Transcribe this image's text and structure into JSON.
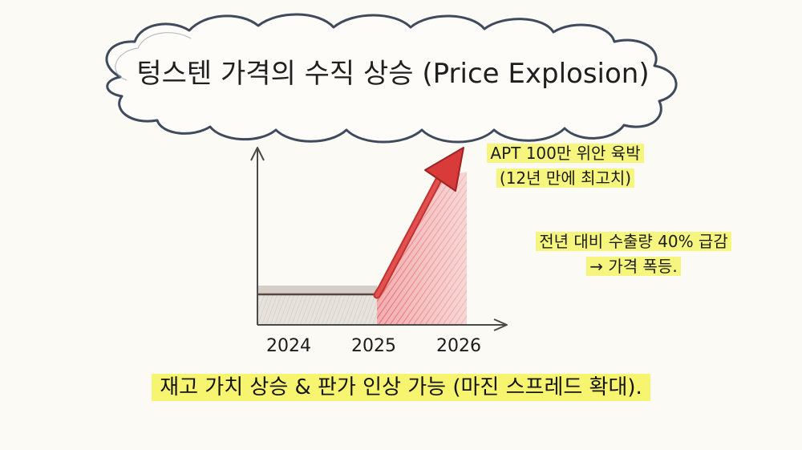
{
  "title": "텅스텐 가격의 수직 상승 (Price Explosion)",
  "annotations": {
    "peak_line1": "APT 100만 위안 육박",
    "peak_line2": "(12년 만에 최고치)",
    "export_line1": "전년 대비 수출량 40% 급감",
    "export_line2": "→ 가격 폭등."
  },
  "footer": "재고 가치 상승 & 판가 인상 가능 (마진 스프레드 확대).",
  "colors": {
    "cloud_stroke": "#3f4a5c",
    "flat_band": "#d8d3cc",
    "rise_fill": "#e8545a",
    "arrow": "#d93a3a",
    "highlight": "#f6f57e"
  },
  "chart_data": {
    "type": "line",
    "categories": [
      "2024",
      "2025",
      "2026"
    ],
    "x_ticks": [
      "2024",
      "2025",
      "2026"
    ],
    "trend": [
      "flat",
      "flat",
      "sharp rise"
    ],
    "grid": false,
    "legend": "none"
  }
}
